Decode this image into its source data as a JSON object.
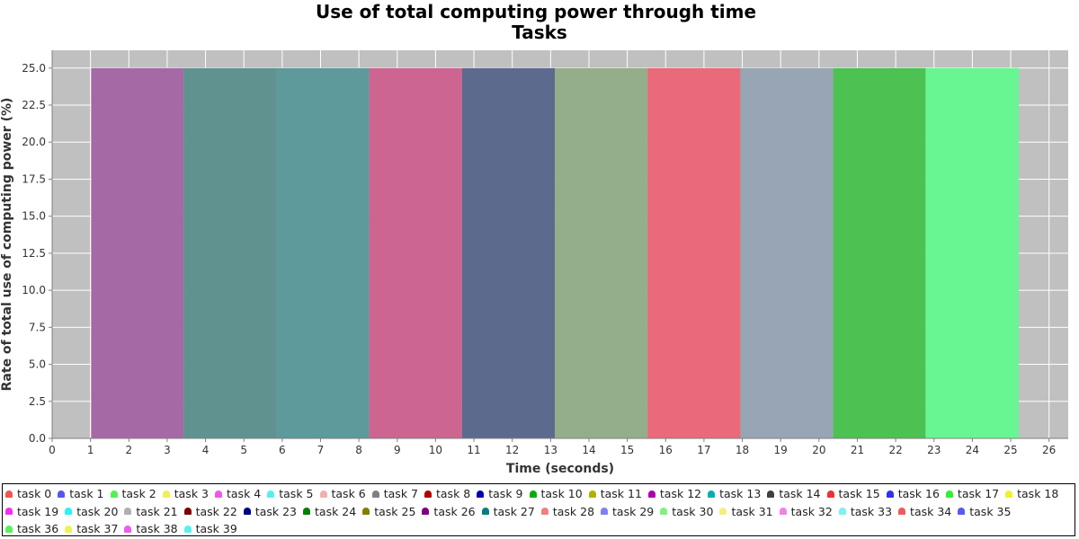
{
  "chart_data": {
    "type": "area",
    "title": "Use of total computing power through time",
    "subtitle": "Tasks",
    "xlabel": "Time (seconds)",
    "ylabel": "Rate of total use of computing power (%)",
    "xlim": [
      0,
      26.5
    ],
    "ylim": [
      0,
      26.2
    ],
    "x_ticks": [
      "0",
      "1",
      "2",
      "3",
      "4",
      "5",
      "6",
      "7",
      "8",
      "9",
      "10",
      "11",
      "12",
      "13",
      "14",
      "15",
      "16",
      "17",
      "18",
      "19",
      "20",
      "21",
      "22",
      "23",
      "24",
      "25",
      "26"
    ],
    "y_ticks": [
      "0.0",
      "2.5",
      "5.0",
      "7.5",
      "10.0",
      "12.5",
      "15.0",
      "17.5",
      "20.0",
      "22.5",
      "25.0"
    ],
    "grid": true,
    "legend_position": "bottom",
    "plot_background": "#c0c0c0",
    "bars": [
      {
        "start": 1.02,
        "end": 3.43,
        "value": 25,
        "color": "#a569a5"
      },
      {
        "start": 3.43,
        "end": 5.86,
        "value": 25,
        "color": "#609290"
      },
      {
        "start": 5.86,
        "end": 8.27,
        "value": 25,
        "color": "#5e999c"
      },
      {
        "start": 8.27,
        "end": 10.69,
        "value": 25,
        "color": "#cc6690"
      },
      {
        "start": 10.69,
        "end": 13.11,
        "value": 25,
        "color": "#5c6a8e"
      },
      {
        "start": 13.11,
        "end": 15.53,
        "value": 25,
        "color": "#95ae8a"
      },
      {
        "start": 15.53,
        "end": 17.95,
        "value": 25,
        "color": "#ea6a7a"
      },
      {
        "start": 17.95,
        "end": 20.37,
        "value": 25,
        "color": "#97a5b4"
      },
      {
        "start": 20.37,
        "end": 22.78,
        "value": 25,
        "color": "#4dc152"
      },
      {
        "start": 22.78,
        "end": 25.21,
        "value": 25,
        "color": "#68f693"
      }
    ],
    "legend": [
      {
        "label": "task 0",
        "color": "#f05555"
      },
      {
        "label": "task 1",
        "color": "#5555f0"
      },
      {
        "label": "task 2",
        "color": "#55f055"
      },
      {
        "label": "task 3",
        "color": "#f0f055"
      },
      {
        "label": "task 4",
        "color": "#f055f0"
      },
      {
        "label": "task 5",
        "color": "#55f0f0"
      },
      {
        "label": "task 6",
        "color": "#f0b0b0"
      },
      {
        "label": "task 7",
        "color": "#808080"
      },
      {
        "label": "task 8",
        "color": "#b00000"
      },
      {
        "label": "task 9",
        "color": "#0000b0"
      },
      {
        "label": "task 10",
        "color": "#00b000"
      },
      {
        "label": "task 11",
        "color": "#b0b000"
      },
      {
        "label": "task 12",
        "color": "#b000b0"
      },
      {
        "label": "task 13",
        "color": "#00b0b0"
      },
      {
        "label": "task 14",
        "color": "#404040"
      },
      {
        "label": "task 15",
        "color": "#f03030"
      },
      {
        "label": "task 16",
        "color": "#3030f0"
      },
      {
        "label": "task 17",
        "color": "#30f030"
      },
      {
        "label": "task 18",
        "color": "#f0f030"
      },
      {
        "label": "task 19",
        "color": "#f030f0"
      },
      {
        "label": "task 20",
        "color": "#30f0f0"
      },
      {
        "label": "task 21",
        "color": "#b0b0b0"
      },
      {
        "label": "task 22",
        "color": "#800000"
      },
      {
        "label": "task 23",
        "color": "#000080"
      },
      {
        "label": "task 24",
        "color": "#008000"
      },
      {
        "label": "task 25",
        "color": "#808000"
      },
      {
        "label": "task 26",
        "color": "#800080"
      },
      {
        "label": "task 27",
        "color": "#008080"
      },
      {
        "label": "task 28",
        "color": "#f08080"
      },
      {
        "label": "task 29",
        "color": "#8080f0"
      },
      {
        "label": "task 30",
        "color": "#80f080"
      },
      {
        "label": "task 31",
        "color": "#f0f080"
      },
      {
        "label": "task 32",
        "color": "#f080f0"
      },
      {
        "label": "task 33",
        "color": "#80f0f0"
      },
      {
        "label": "task 34",
        "color": "#f05a5a"
      },
      {
        "label": "task 35",
        "color": "#5a5af0"
      },
      {
        "label": "task 36",
        "color": "#5af05a"
      },
      {
        "label": "task 37",
        "color": "#f0f05a"
      },
      {
        "label": "task 38",
        "color": "#f05af0"
      },
      {
        "label": "task 39",
        "color": "#5af0f0"
      }
    ]
  }
}
